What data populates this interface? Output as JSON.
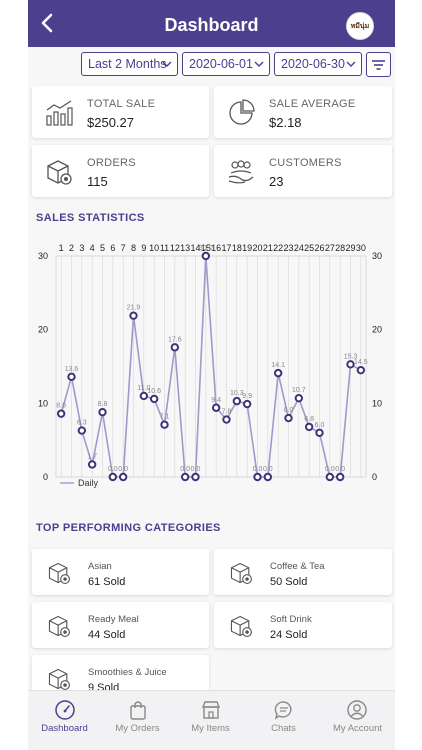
{
  "header": {
    "title": "Dashboard",
    "logo_text": "หมีนุ่ม"
  },
  "filters": {
    "range": "Last 2 Months",
    "start_date": "2020-06-01",
    "end_date": "2020-06-30"
  },
  "stats": [
    {
      "label": "TOTAL SALE",
      "value": "$250.27",
      "icon": "chart-icon"
    },
    {
      "label": "SALE AVERAGE",
      "value": "$2.18",
      "icon": "pie-chart-icon"
    },
    {
      "label": "ORDERS",
      "value": "115",
      "icon": "box-icon"
    },
    {
      "label": "CUSTOMERS",
      "value": "23",
      "icon": "customers-icon"
    }
  ],
  "sales_section_title": "SALES STATISTICS",
  "chart_data": {
    "type": "line",
    "x": [
      "1",
      "2",
      "3",
      "4",
      "5",
      "6",
      "7",
      "8",
      "9",
      "10",
      "11",
      "12",
      "13",
      "14",
      "15",
      "16",
      "17",
      "18",
      "19",
      "20",
      "21",
      "22",
      "23",
      "24",
      "25",
      "26",
      "27",
      "28",
      "29",
      "30"
    ],
    "series": [
      {
        "name": "Daily",
        "values": [
          8.6,
          13.6,
          6.3,
          1.7,
          8.8,
          0,
          0,
          21.9,
          11.0,
          10.6,
          7.1,
          17.6,
          0,
          0,
          30.0,
          9.4,
          7.8,
          10.3,
          9.9,
          0,
          0,
          14.1,
          8.0,
          10.7,
          6.8,
          6.0,
          0,
          0,
          15.3,
          14.5
        ]
      }
    ],
    "value_labels": [
      "8.6",
      "13.6",
      "6.3",
      "1.7",
      "8.8",
      "0.0",
      "0.0",
      "21.9",
      "11.0",
      "10.6",
      "7.1",
      "17.6",
      "0.0",
      "0.0",
      "30.0",
      "9.4",
      "7.8",
      "10.3",
      "9.9",
      "0.0",
      "0.0",
      "14.1",
      "8.0",
      "10.7",
      "6.8",
      "6.0",
      "0.0",
      "0.0",
      "15.3",
      "14.5"
    ],
    "yticks": [
      "0",
      "10",
      "20",
      "30"
    ],
    "ylim": [
      0,
      30
    ],
    "legend_position": "bottom-left",
    "grid": true,
    "colors": {
      "line": "#9e9acc",
      "point": "#3c3478",
      "grid": "#d9d9d9"
    }
  },
  "categories_section_title": "TOP PERFORMING CATEGORIES",
  "categories": [
    {
      "name": "Asian",
      "sold": "61 Sold"
    },
    {
      "name": "Coffee & Tea",
      "sold": "50 Sold"
    },
    {
      "name": "Ready Meal",
      "sold": "44 Sold"
    },
    {
      "name": "Soft Drink",
      "sold": "24 Sold"
    },
    {
      "name": "Smoothies & Juice",
      "sold": "9 Sold"
    }
  ],
  "tabs": [
    {
      "label": "Dashboard",
      "icon": "speedometer-icon"
    },
    {
      "label": "My Orders",
      "icon": "shopping-bag-icon"
    },
    {
      "label": "My Items",
      "icon": "store-icon"
    },
    {
      "label": "Chats",
      "icon": "chat-icon"
    },
    {
      "label": "My Account",
      "icon": "user-icon"
    }
  ],
  "colors": {
    "brand": "#4b3f8e",
    "active_tab": "#4b3f8e",
    "inactive_tab": "#888888"
  }
}
